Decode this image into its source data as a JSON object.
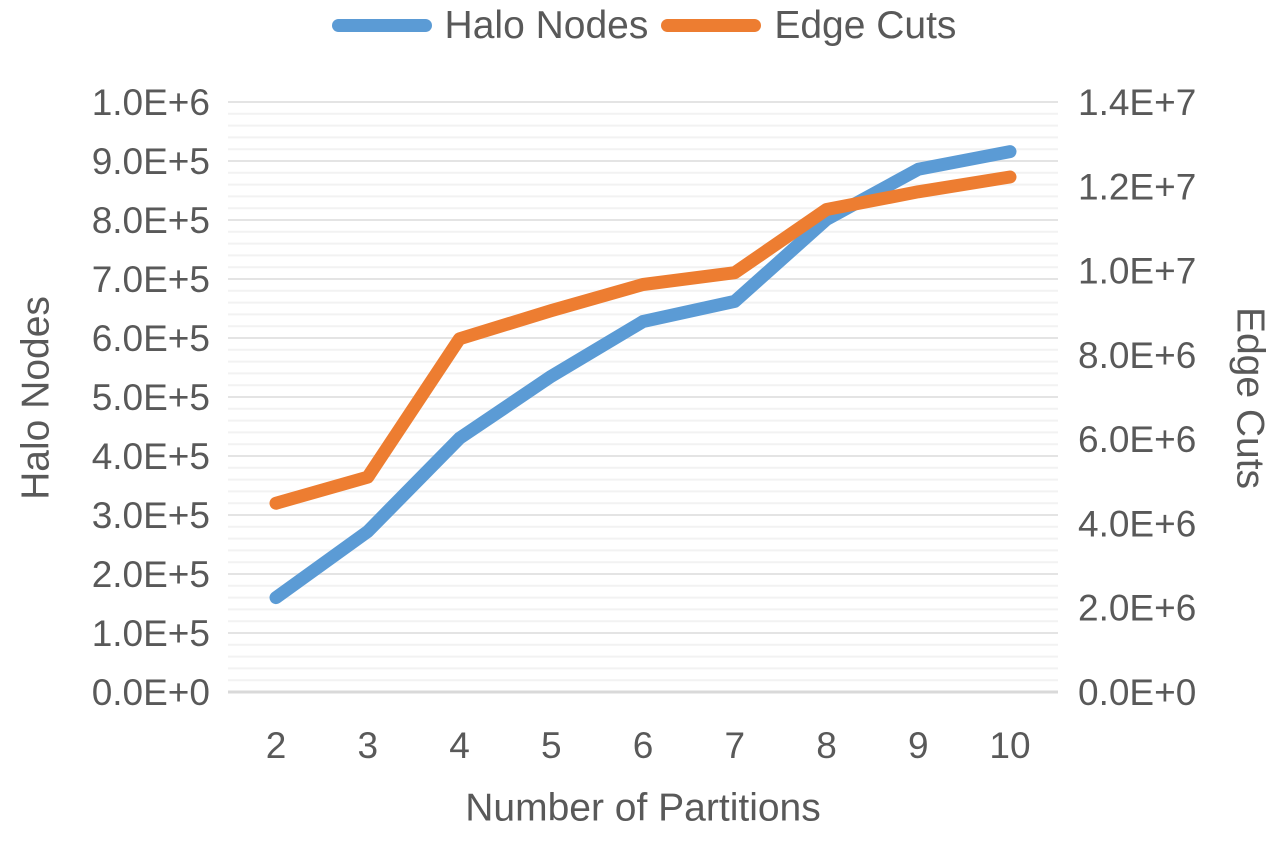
{
  "chart_data": {
    "type": "line",
    "title": "",
    "xlabel": "Number of Partitions",
    "x": [
      2,
      3,
      4,
      5,
      6,
      7,
      8,
      9,
      10
    ],
    "x_tick_labels": [
      "2",
      "3",
      "4",
      "5",
      "6",
      "7",
      "8",
      "9",
      "10"
    ],
    "series": [
      {
        "name": "Halo Nodes",
        "axis": "left",
        "color": "#5B9BD5",
        "values": [
          160000,
          272000,
          430000,
          535000,
          628000,
          662000,
          801000,
          886000,
          916000
        ]
      },
      {
        "name": "Edge Cuts",
        "axis": "right",
        "color": "#ED7D31",
        "values": [
          4480000,
          5100000,
          8380000,
          9050000,
          9670000,
          9950000,
          11450000,
          11870000,
          12220000
        ]
      }
    ],
    "left_axis": {
      "label": "Halo Nodes",
      "min": 0,
      "max": 1000000,
      "major_step": 100000,
      "minor_step": 20000,
      "tick_labels": [
        "0.0E+0",
        "1.0E+5",
        "2.0E+5",
        "3.0E+5",
        "4.0E+5",
        "5.0E+5",
        "6.0E+5",
        "7.0E+5",
        "8.0E+5",
        "9.0E+5",
        "1.0E+6"
      ]
    },
    "right_axis": {
      "label": "Edge Cuts",
      "min": 0,
      "max": 14000000,
      "major_step": 2000000,
      "tick_labels": [
        "0.0E+0",
        "2.0E+6",
        "4.0E+6",
        "6.0E+6",
        "8.0E+6",
        "1.0E+7",
        "1.2E+7",
        "1.4E+7"
      ]
    },
    "legend_position": "top",
    "grid": "horizontal, major + minor",
    "text_color": "#595959",
    "grid_colors": {
      "minor": "#F2F2F2",
      "major": "#E4E4E4",
      "baseline": "#D9D9D9"
    }
  },
  "legend": {
    "items": [
      {
        "label": "Halo Nodes",
        "color": "#5B9BD5"
      },
      {
        "label": "Edge Cuts",
        "color": "#ED7D31"
      }
    ]
  }
}
